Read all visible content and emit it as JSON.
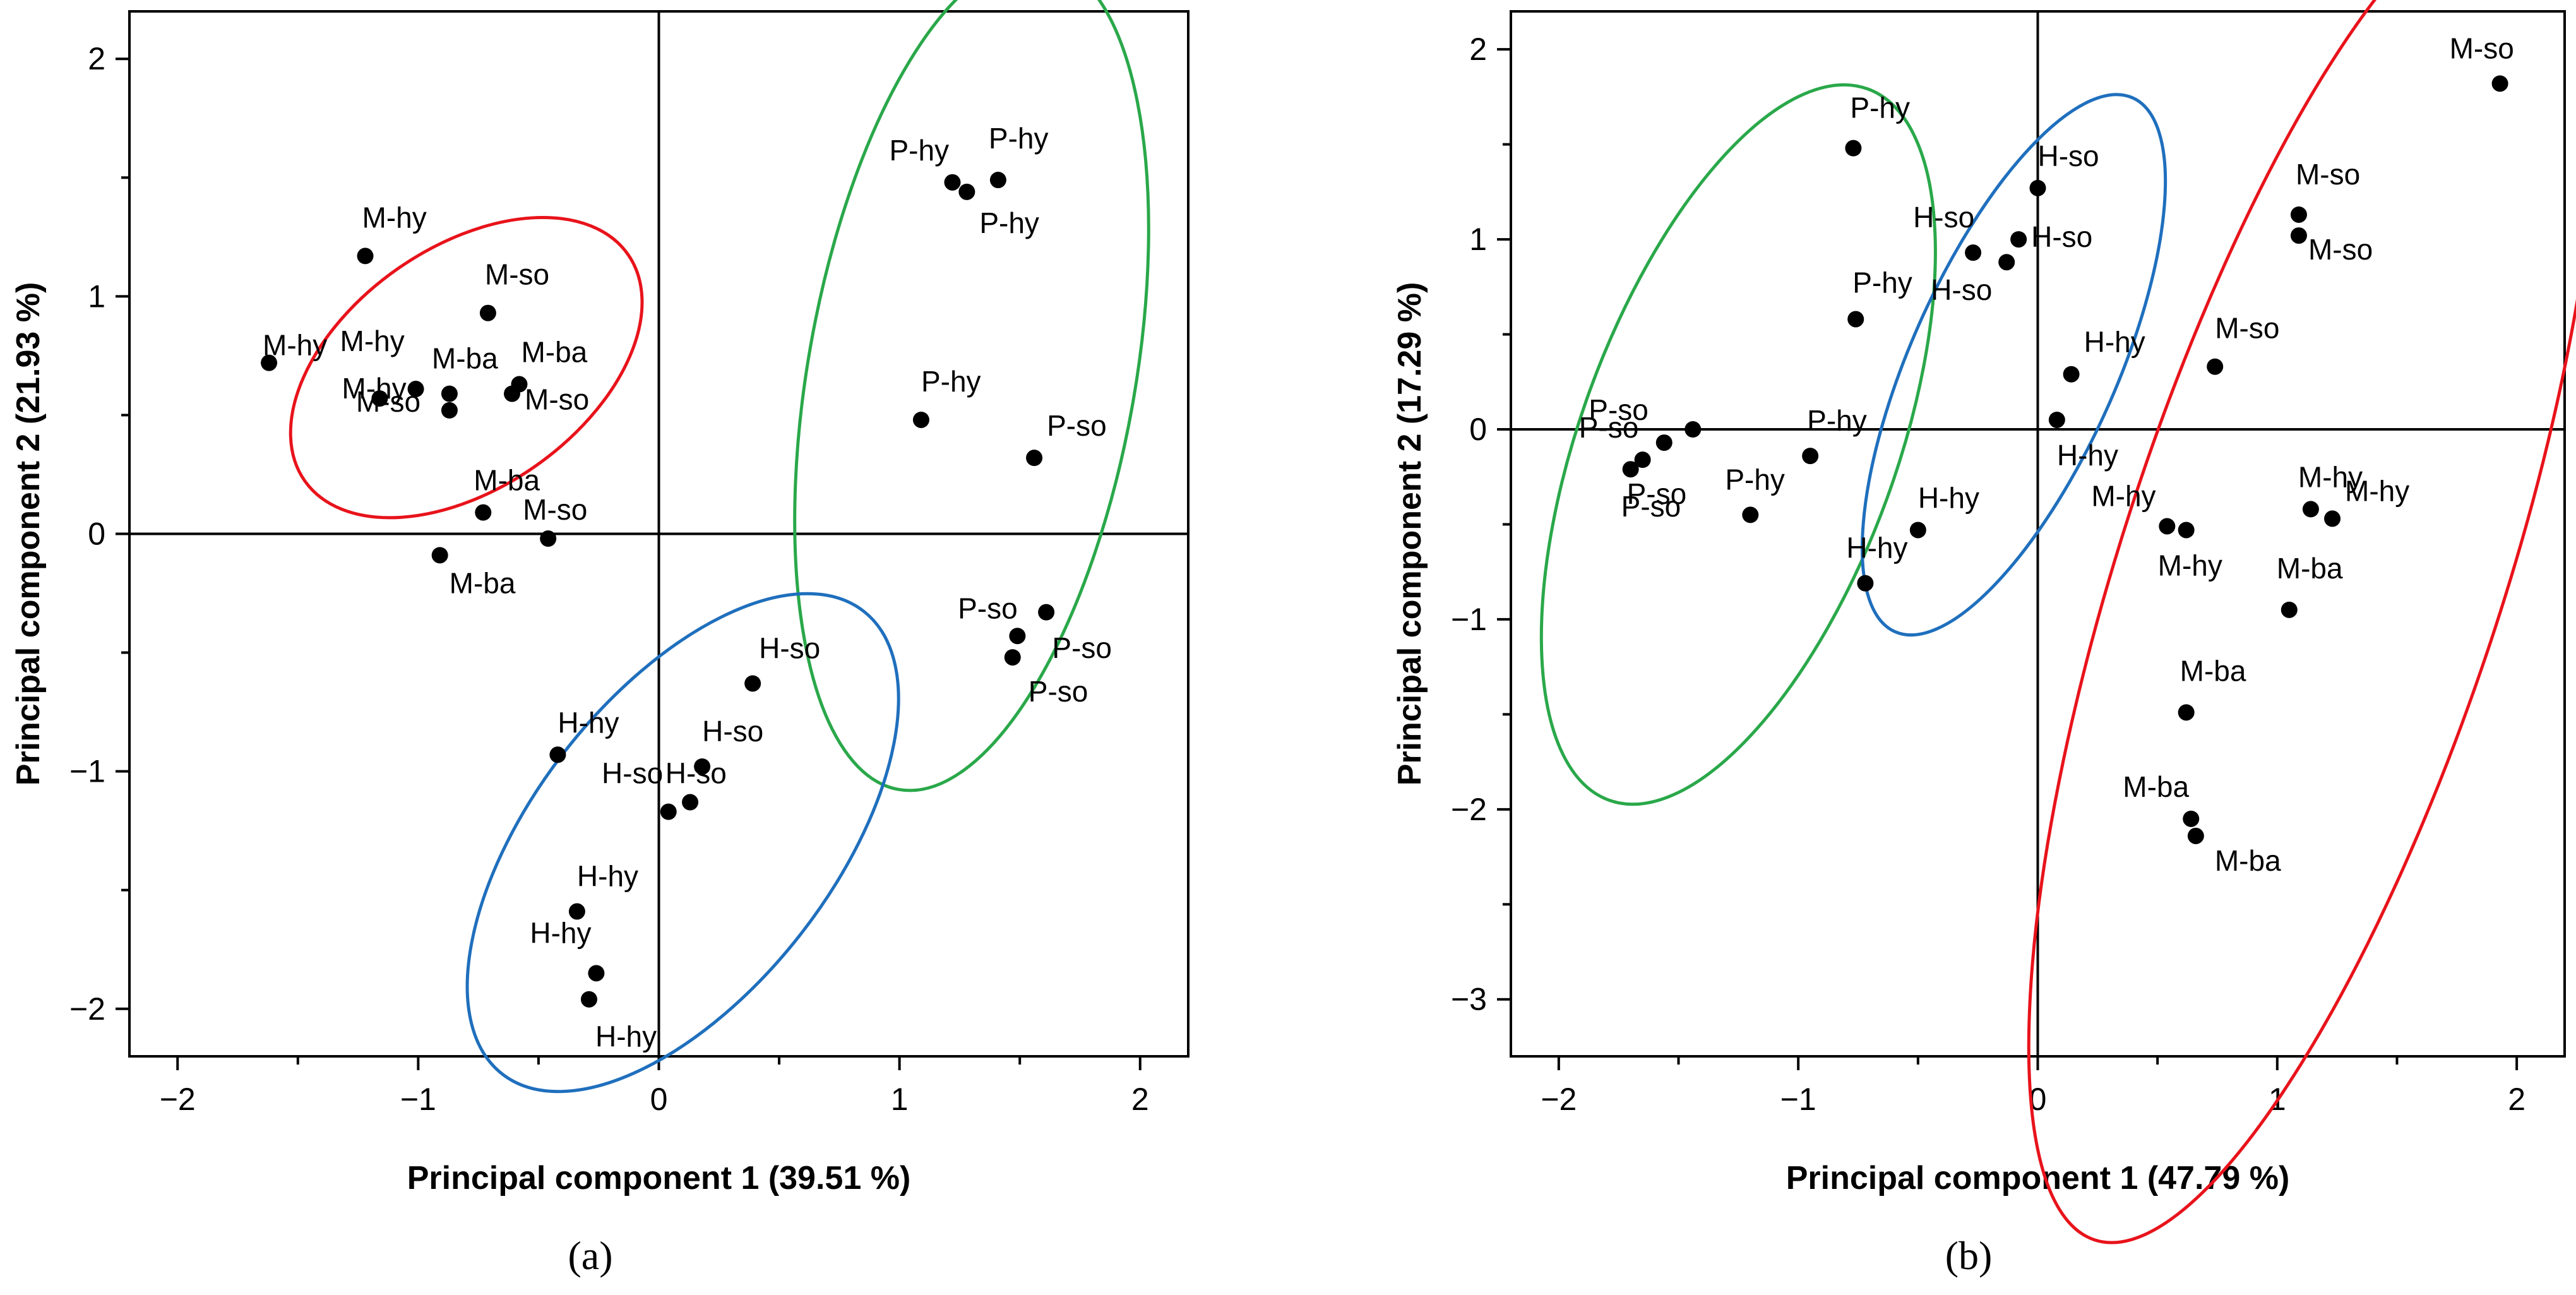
{
  "chart_data": [
    {
      "type": "scatter",
      "panel": "a",
      "caption": "(a)",
      "xlabel": "Principal component 1 (39.51 %)",
      "ylabel": "Principal component 2 (21.93 %)",
      "xlim": [
        -2.2,
        2.2
      ],
      "ylim": [
        -2.2,
        2.2
      ],
      "xticks": [
        -2,
        -1,
        0,
        1,
        2
      ],
      "yticks": [
        -2,
        -1,
        0,
        1,
        2
      ],
      "xtick_labels": [
        "−2",
        "−1",
        "0",
        "1",
        "2"
      ],
      "ytick_labels": [
        "−2",
        "−1",
        "0",
        "1",
        "2"
      ],
      "zero_lines": true,
      "points": [
        {
          "label": "M-hy",
          "x": -1.22,
          "y": 1.17
        },
        {
          "label": "M-hy",
          "x": -1.62,
          "y": 0.72
        },
        {
          "label": "M-hy",
          "x": -1.16,
          "y": 0.57
        },
        {
          "label": "M-hy",
          "x": -1.01,
          "y": 0.61
        },
        {
          "label": "M-so",
          "x": -0.71,
          "y": 0.93
        },
        {
          "label": "M-ba",
          "x": -0.87,
          "y": 0.59
        },
        {
          "label": "M-so",
          "x": -0.87,
          "y": 0.52
        },
        {
          "label": "M-ba",
          "x": -0.58,
          "y": 0.63
        },
        {
          "label": "M-so",
          "x": -0.61,
          "y": 0.59
        },
        {
          "label": "M-ba",
          "x": -0.73,
          "y": 0.09
        },
        {
          "label": "M-ba",
          "x": -0.91,
          "y": -0.09
        },
        {
          "label": "M-so",
          "x": -0.46,
          "y": -0.02
        },
        {
          "label": "P-hy",
          "x": 1.22,
          "y": 1.48
        },
        {
          "label": "P-hy",
          "x": 1.28,
          "y": 1.44
        },
        {
          "label": "P-hy",
          "x": 1.41,
          "y": 1.49
        },
        {
          "label": "P-hy",
          "x": 1.09,
          "y": 0.48
        },
        {
          "label": "P-so",
          "x": 1.56,
          "y": 0.32
        },
        {
          "label": "P-so",
          "x": 1.61,
          "y": -0.33
        },
        {
          "label": "P-so",
          "x": 1.49,
          "y": -0.43
        },
        {
          "label": "P-so",
          "x": 1.47,
          "y": -0.52
        },
        {
          "label": "H-so",
          "x": 0.39,
          "y": -0.63
        },
        {
          "label": "H-so",
          "x": 0.18,
          "y": -0.98
        },
        {
          "label": "H-so",
          "x": 0.13,
          "y": -1.13
        },
        {
          "label": "H-so",
          "x": 0.04,
          "y": -1.17
        },
        {
          "label": "H-hy",
          "x": -0.42,
          "y": -0.93
        },
        {
          "label": "H-hy",
          "x": -0.34,
          "y": -1.59
        },
        {
          "label": "H-hy",
          "x": -0.26,
          "y": -1.85
        },
        {
          "label": "H-hy",
          "x": -0.29,
          "y": -1.96
        }
      ],
      "ellipses": [
        {
          "group": "M",
          "color": "#e8131b",
          "cx": -0.8,
          "cy": 0.7,
          "rx": 0.82,
          "ry": 0.5,
          "angle_deg": 35
        },
        {
          "group": "P",
          "color": "#2aa84a",
          "cx": 1.3,
          "cy": 0.67,
          "rx": 1.75,
          "ry": 0.68,
          "angle_deg": 80
        },
        {
          "group": "H",
          "color": "#1f6fbd",
          "cx": 0.1,
          "cy": -1.3,
          "rx": 1.22,
          "ry": 0.62,
          "angle_deg": 52
        }
      ]
    },
    {
      "type": "scatter",
      "panel": "b",
      "caption": "(b)",
      "xlabel": "Principal component 1 (47.79 %)",
      "ylabel": "Principal component 2 (17.29 %)",
      "xlim": [
        -2.2,
        2.2
      ],
      "ylim": [
        -3.3,
        2.2
      ],
      "xticks": [
        -2,
        -1,
        0,
        1,
        2
      ],
      "yticks": [
        -3,
        -2,
        -1,
        0,
        1,
        2
      ],
      "xtick_labels": [
        "−2",
        "−1",
        "0",
        "1",
        "2"
      ],
      "ytick_labels": [
        "−3",
        "−2",
        "−1",
        "0",
        "1",
        "2"
      ],
      "zero_lines": true,
      "points": [
        {
          "label": "M-so",
          "x": 1.93,
          "y": 1.82
        },
        {
          "label": "M-so",
          "x": 1.09,
          "y": 1.13
        },
        {
          "label": "M-so",
          "x": 1.09,
          "y": 1.02
        },
        {
          "label": "M-so",
          "x": 0.74,
          "y": 0.33
        },
        {
          "label": "M-hy",
          "x": 0.54,
          "y": -0.51
        },
        {
          "label": "M-hy",
          "x": 0.62,
          "y": -0.53
        },
        {
          "label": "M-hy",
          "x": 1.14,
          "y": -0.42
        },
        {
          "label": "M-hy",
          "x": 1.23,
          "y": -0.47
        },
        {
          "label": "M-ba",
          "x": 1.05,
          "y": -0.95
        },
        {
          "label": "M-ba",
          "x": 0.62,
          "y": -1.49
        },
        {
          "label": "M-ba",
          "x": 0.64,
          "y": -2.05
        },
        {
          "label": "M-ba",
          "x": 0.66,
          "y": -2.14
        },
        {
          "label": "P-hy",
          "x": -0.77,
          "y": 1.48
        },
        {
          "label": "P-hy",
          "x": -0.76,
          "y": 0.58
        },
        {
          "label": "P-hy",
          "x": -0.95,
          "y": -0.14
        },
        {
          "label": "P-hy",
          "x": -1.2,
          "y": -0.45
        },
        {
          "label": "P-so",
          "x": -1.44,
          "y": 0.0
        },
        {
          "label": "P-so",
          "x": -1.56,
          "y": -0.07
        },
        {
          "label": "P-so",
          "x": -1.65,
          "y": -0.16
        },
        {
          "label": "P-so",
          "x": -1.7,
          "y": -0.21
        },
        {
          "label": "H-so",
          "x": 0.0,
          "y": 1.27
        },
        {
          "label": "H-so",
          "x": -0.27,
          "y": 0.93
        },
        {
          "label": "H-so",
          "x": -0.08,
          "y": 1.0
        },
        {
          "label": "H-so",
          "x": -0.13,
          "y": 0.88
        },
        {
          "label": "H-hy",
          "x": 0.14,
          "y": 0.29
        },
        {
          "label": "H-hy",
          "x": 0.08,
          "y": 0.05
        },
        {
          "label": "H-hy",
          "x": -0.5,
          "y": -0.53
        },
        {
          "label": "H-hy",
          "x": -0.72,
          "y": -0.81
        }
      ],
      "ellipses": [
        {
          "group": "P",
          "color": "#2aa84a",
          "cx": -1.25,
          "cy": -0.08,
          "rx": 1.58,
          "ry": 0.66,
          "angle_deg": 70
        },
        {
          "group": "H",
          "color": "#1f6fbd",
          "cx": -0.1,
          "cy": 0.34,
          "rx": 1.22,
          "ry": 0.43,
          "angle_deg": 66
        },
        {
          "group": "M",
          "color": "#e8131b",
          "cx": 1.15,
          "cy": -0.73,
          "rx": 2.95,
          "ry": 0.8,
          "angle_deg": 72
        }
      ]
    }
  ]
}
